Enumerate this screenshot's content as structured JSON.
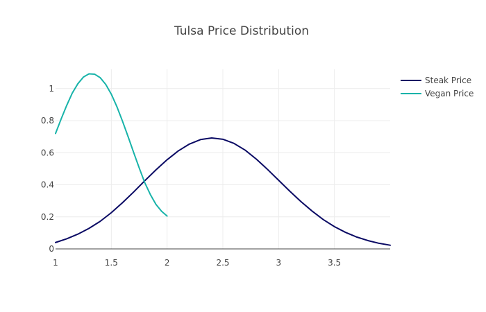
{
  "chart_data": {
    "type": "line",
    "title": "Tulsa Price Distribution",
    "xlabel": "",
    "ylabel": "",
    "xlim": [
      1,
      4
    ],
    "ylim": [
      0,
      1.12
    ],
    "x_ticks": [
      1,
      1.5,
      2,
      2.5,
      3,
      3.5
    ],
    "x_tick_labels": [
      "1",
      "1.5",
      "2",
      "2.5",
      "3",
      "3.5"
    ],
    "y_ticks": [
      0,
      0.2,
      0.4,
      0.6,
      0.8,
      1
    ],
    "y_tick_labels": [
      "0",
      "0.2",
      "0.4",
      "0.6",
      "0.8",
      "1"
    ],
    "grid": true,
    "legend_position": "top-right",
    "series": [
      {
        "name": "Steak Price",
        "color": "#0a0a64",
        "x": [
          1.0,
          1.1,
          1.2,
          1.3,
          1.4,
          1.5,
          1.6,
          1.7,
          1.8,
          1.9,
          2.0,
          2.1,
          2.2,
          2.3,
          2.4,
          2.5,
          2.6,
          2.7,
          2.8,
          2.9,
          3.0,
          3.1,
          3.2,
          3.3,
          3.4,
          3.5,
          3.6,
          3.7,
          3.8,
          3.9,
          4.0
        ],
        "y": [
          0.04,
          0.063,
          0.092,
          0.128,
          0.172,
          0.226,
          0.288,
          0.355,
          0.425,
          0.493,
          0.556,
          0.611,
          0.654,
          0.682,
          0.692,
          0.684,
          0.658,
          0.616,
          0.56,
          0.496,
          0.428,
          0.36,
          0.295,
          0.236,
          0.183,
          0.139,
          0.103,
          0.074,
          0.052,
          0.035,
          0.023
        ]
      },
      {
        "name": "Vegan Price",
        "color": "#17b3a9",
        "x": [
          1.0,
          1.05,
          1.1,
          1.15,
          1.2,
          1.25,
          1.3,
          1.35,
          1.4,
          1.45,
          1.5,
          1.55,
          1.6,
          1.65,
          1.7,
          1.75,
          1.8,
          1.85,
          1.9,
          1.95,
          2.0
        ],
        "y": [
          0.72,
          0.81,
          0.895,
          0.972,
          1.03,
          1.072,
          1.092,
          1.09,
          1.068,
          1.026,
          0.965,
          0.887,
          0.797,
          0.701,
          0.602,
          0.505,
          0.413,
          0.339,
          0.278,
          0.235,
          0.205
        ]
      }
    ]
  }
}
